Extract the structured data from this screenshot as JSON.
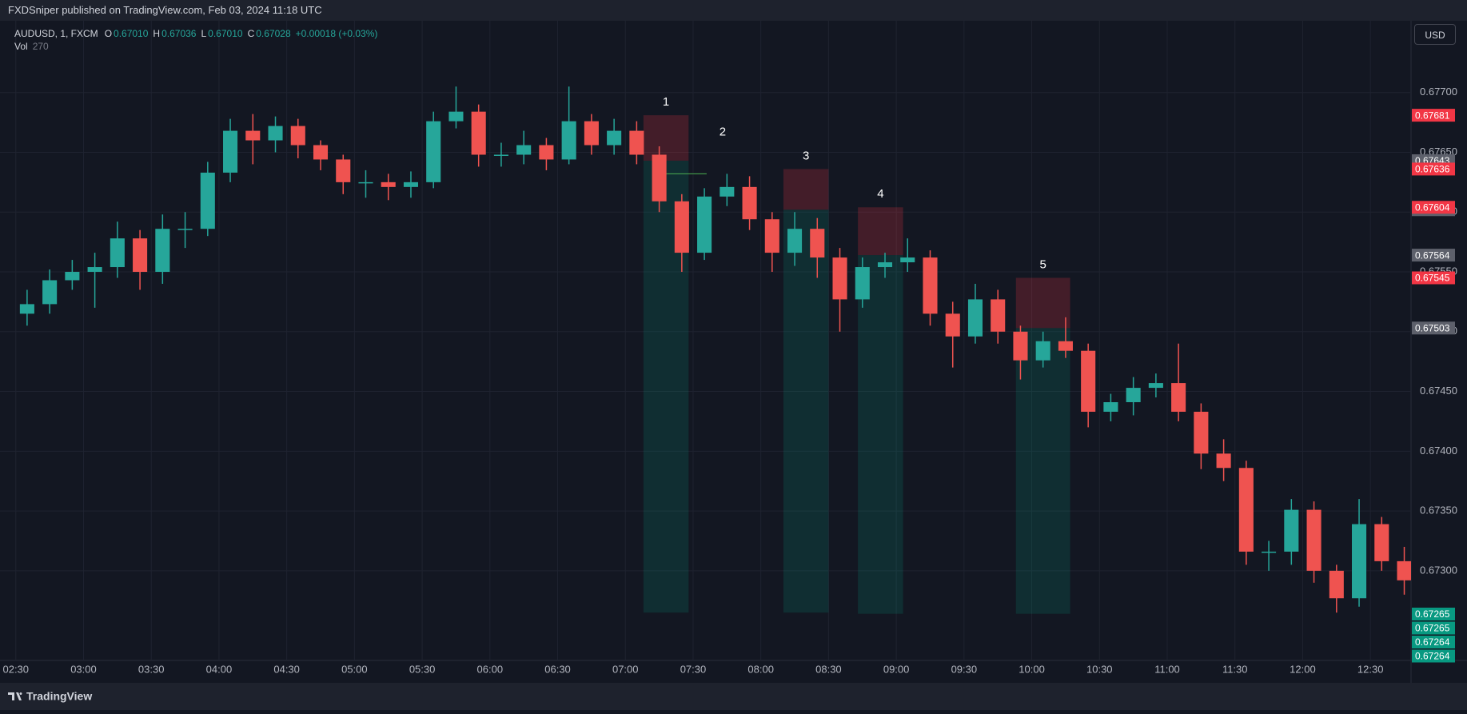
{
  "header": {
    "publisher": "FXDSniper published on TradingView.com, Feb 03, 2024 11:18 UTC",
    "symbol": "AUDUSD, 1, FXCM",
    "ohlc": [
      {
        "key": "O",
        "value": "0.67010"
      },
      {
        "key": "H",
        "value": "0.67036"
      },
      {
        "key": "L",
        "value": "0.67010"
      },
      {
        "key": "C",
        "value": "0.67028"
      }
    ],
    "change": "+0.00018 (+0.03%)",
    "volume": {
      "key": "Vol",
      "value": "270"
    },
    "currency": "USD"
  },
  "footer": {
    "brand": "TradingView"
  },
  "chart_data": {
    "type": "candlestick",
    "up_color": "#26a69a",
    "down_color": "#ef5350",
    "grid": true,
    "xlim": [
      "02:23",
      "12:48"
    ],
    "xticks": [
      "02:30",
      "03:00",
      "03:30",
      "04:00",
      "04:30",
      "05:00",
      "05:30",
      "06:00",
      "06:30",
      "07:00",
      "07:30",
      "08:00",
      "08:30",
      "09:00",
      "09:30",
      "10:00",
      "10:30",
      "11:00",
      "11:30",
      "12:00",
      "12:30"
    ],
    "ylim": [
      0.67225,
      0.6776
    ],
    "yticks": [
      {
        "value": 0.673,
        "label": "0.67300"
      },
      {
        "value": 0.6735,
        "label": "0.67350"
      },
      {
        "value": 0.674,
        "label": "0.67400"
      },
      {
        "value": 0.6745,
        "label": "0.67450"
      },
      {
        "value": 0.675,
        "label": "0.67500"
      },
      {
        "value": 0.6755,
        "label": "0.67550"
      },
      {
        "value": 0.676,
        "label": "0.67600"
      },
      {
        "value": 0.6765,
        "label": "0.67650"
      },
      {
        "value": 0.677,
        "label": "0.67700"
      }
    ],
    "x": [
      "02:30",
      "02:40",
      "02:50",
      "03:00",
      "03:10",
      "03:20",
      "03:30",
      "03:40",
      "03:50",
      "04:00",
      "04:10",
      "04:20",
      "04:30",
      "04:40",
      "04:50",
      "05:00",
      "05:10",
      "05:20",
      "05:30",
      "05:40",
      "05:50",
      "06:00",
      "06:10",
      "06:20",
      "06:30",
      "06:40",
      "06:50",
      "07:00",
      "07:10",
      "07:20",
      "07:30",
      "07:40",
      "07:50",
      "08:00",
      "08:10",
      "08:20",
      "08:30",
      "08:40",
      "08:50",
      "09:00",
      "09:10",
      "09:20",
      "09:30",
      "09:40",
      "09:50",
      "10:00",
      "10:10",
      "10:20",
      "10:30",
      "10:40",
      "10:50",
      "11:00",
      "11:10",
      "11:20",
      "11:30",
      "11:40",
      "11:50",
      "12:00",
      "12:10",
      "12:20",
      "12:30",
      "12:40"
    ],
    "open": [
      0.67515,
      0.67523,
      0.67543,
      0.6755,
      0.67554,
      0.67578,
      0.6755,
      0.67586,
      0.67586,
      0.67633,
      0.67668,
      0.6766,
      0.67672,
      0.67656,
      0.67644,
      0.67625,
      0.67625,
      0.67621,
      0.67625,
      0.67676,
      0.67684,
      0.67648,
      0.67648,
      0.67656,
      0.67644,
      0.67676,
      0.67656,
      0.67668,
      0.67648,
      0.67609,
      0.67566,
      0.67613,
      0.67621,
      0.67594,
      0.67566,
      0.67586,
      0.67562,
      0.67527,
      0.67554,
      0.67558,
      0.67562,
      0.67515,
      0.67496,
      0.67527,
      0.675,
      0.67476,
      0.67492,
      0.67484,
      0.67433,
      0.67441,
      0.67453,
      0.67457,
      0.67433,
      0.67398,
      0.67386,
      0.67316,
      0.67316,
      0.67351,
      0.673,
      0.67277,
      0.67339,
      0.67308
    ],
    "high": [
      0.67535,
      0.67552,
      0.6756,
      0.67566,
      0.67592,
      0.67585,
      0.67598,
      0.676,
      0.67642,
      0.67678,
      0.67682,
      0.6768,
      0.67678,
      0.6766,
      0.67648,
      0.67635,
      0.67632,
      0.67634,
      0.67684,
      0.67705,
      0.6769,
      0.67658,
      0.67668,
      0.67662,
      0.67705,
      0.67682,
      0.67678,
      0.67676,
      0.67655,
      0.67615,
      0.6762,
      0.67632,
      0.6763,
      0.676,
      0.676,
      0.67595,
      0.6757,
      0.67562,
      0.67566,
      0.67578,
      0.67568,
      0.67525,
      0.6754,
      0.67535,
      0.67505,
      0.675,
      0.67512,
      0.6749,
      0.67448,
      0.67462,
      0.67465,
      0.6749,
      0.6744,
      0.6741,
      0.67392,
      0.67325,
      0.6736,
      0.67358,
      0.67305,
      0.6736,
      0.67345,
      0.6732
    ],
    "low": [
      0.67505,
      0.67515,
      0.67535,
      0.6752,
      0.67545,
      0.67535,
      0.6754,
      0.6757,
      0.6758,
      0.67625,
      0.6764,
      0.6765,
      0.67645,
      0.67635,
      0.67615,
      0.67612,
      0.6761,
      0.67612,
      0.6762,
      0.6767,
      0.67638,
      0.67638,
      0.6764,
      0.67635,
      0.6764,
      0.67648,
      0.67648,
      0.6764,
      0.676,
      0.6755,
      0.6756,
      0.67605,
      0.67585,
      0.6755,
      0.67555,
      0.67545,
      0.675,
      0.6752,
      0.67545,
      0.6755,
      0.67505,
      0.6747,
      0.6749,
      0.6749,
      0.6746,
      0.6747,
      0.67478,
      0.6742,
      0.67425,
      0.6743,
      0.67445,
      0.67425,
      0.67385,
      0.67375,
      0.67305,
      0.673,
      0.67305,
      0.6729,
      0.67265,
      0.6727,
      0.673,
      0.6728
    ],
    "close": [
      0.67523,
      0.67543,
      0.6755,
      0.67554,
      0.67578,
      0.6755,
      0.67586,
      0.67586,
      0.67633,
      0.67668,
      0.6766,
      0.67672,
      0.67656,
      0.67644,
      0.67625,
      0.67625,
      0.67621,
      0.67625,
      0.67676,
      0.67684,
      0.67648,
      0.67648,
      0.67656,
      0.67644,
      0.67676,
      0.67656,
      0.67668,
      0.67648,
      0.67609,
      0.67566,
      0.67613,
      0.67621,
      0.67594,
      0.67566,
      0.67586,
      0.67562,
      0.67527,
      0.67554,
      0.67558,
      0.67562,
      0.67515,
      0.67496,
      0.67527,
      0.675,
      0.67476,
      0.67492,
      0.67484,
      0.67433,
      0.67441,
      0.67453,
      0.67457,
      0.67433,
      0.67398,
      0.67386,
      0.67316,
      0.67316,
      0.67351,
      0.673,
      0.67277,
      0.67339,
      0.67308,
      0.67292
    ],
    "positions": [
      {
        "label": "1",
        "start": "07:08",
        "end": "07:28",
        "entry": 0.67643,
        "stop": 0.67681,
        "target": 0.67265
      },
      {
        "label": "3",
        "start": "08:10",
        "end": "08:30",
        "entry": 0.67602,
        "stop": 0.67636,
        "target": 0.67265
      },
      {
        "label": "4",
        "start": "08:43",
        "end": "09:03",
        "entry": 0.67564,
        "stop": 0.67604,
        "target": 0.67264
      },
      {
        "label": "5",
        "start": "09:53",
        "end": "10:17",
        "entry": 0.67503,
        "stop": 0.67545,
        "target": 0.67264
      }
    ],
    "lines": [
      {
        "label": "2",
        "start": "07:15",
        "end": "07:36",
        "price": 0.67632
      }
    ]
  }
}
